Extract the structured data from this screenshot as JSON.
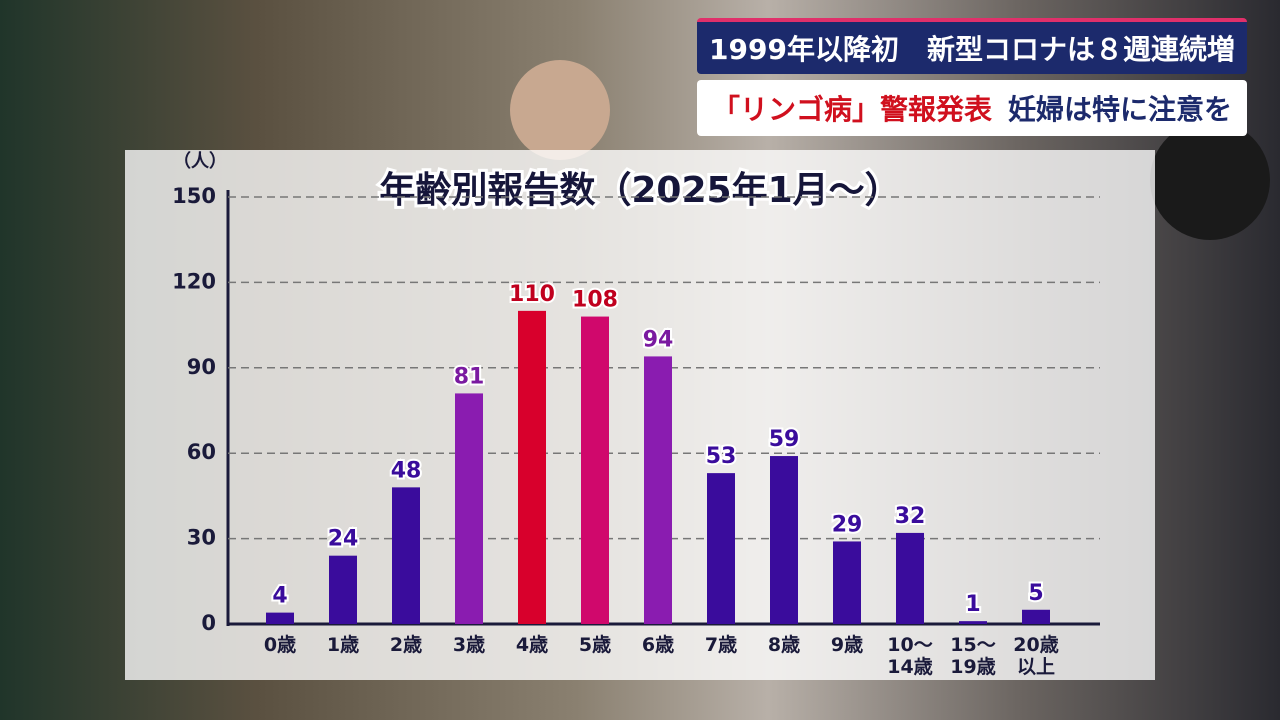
{
  "headline": {
    "line1": "1999年以降初　新型コロナは８週連続増",
    "line2": [
      "「リンゴ病」警報発表",
      "妊婦は特に注意を"
    ]
  },
  "chart_data": {
    "type": "bar",
    "title": "年齢別報告数（2025年1月～）",
    "y_label": "（人）",
    "categories": [
      "0歳",
      "1歳",
      "2歳",
      "3歳",
      "4歳",
      "5歳",
      "6歳",
      "7歳",
      "8歳",
      "9歳",
      "10～\n14歳",
      "15～\n19歳",
      "20歳\n以上"
    ],
    "values": [
      4,
      24,
      48,
      81,
      110,
      108,
      94,
      53,
      59,
      29,
      32,
      1,
      5
    ],
    "colors": [
      "#3a0c9c",
      "#3a0c9c",
      "#3a0c9c",
      "#8a1cb0",
      "#d8002c",
      "#d0086c",
      "#8a1cb0",
      "#3a0c9c",
      "#3a0c9c",
      "#3a0c9c",
      "#3a0c9c",
      "#3a0c9c",
      "#3a0c9c"
    ],
    "label_colors": [
      "#3a0c9c",
      "#3a0c9c",
      "#3a0c9c",
      "#7a1aa0",
      "#c0001e",
      "#c0001e",
      "#7a1aa0",
      "#3a0c9c",
      "#3a0c9c",
      "#3a0c9c",
      "#3a0c9c",
      "#3a0c9c",
      "#3a0c9c"
    ],
    "ylim": [
      0,
      150
    ],
    "yticks": [
      0,
      30,
      60,
      90,
      120,
      150
    ],
    "grid": true
  }
}
